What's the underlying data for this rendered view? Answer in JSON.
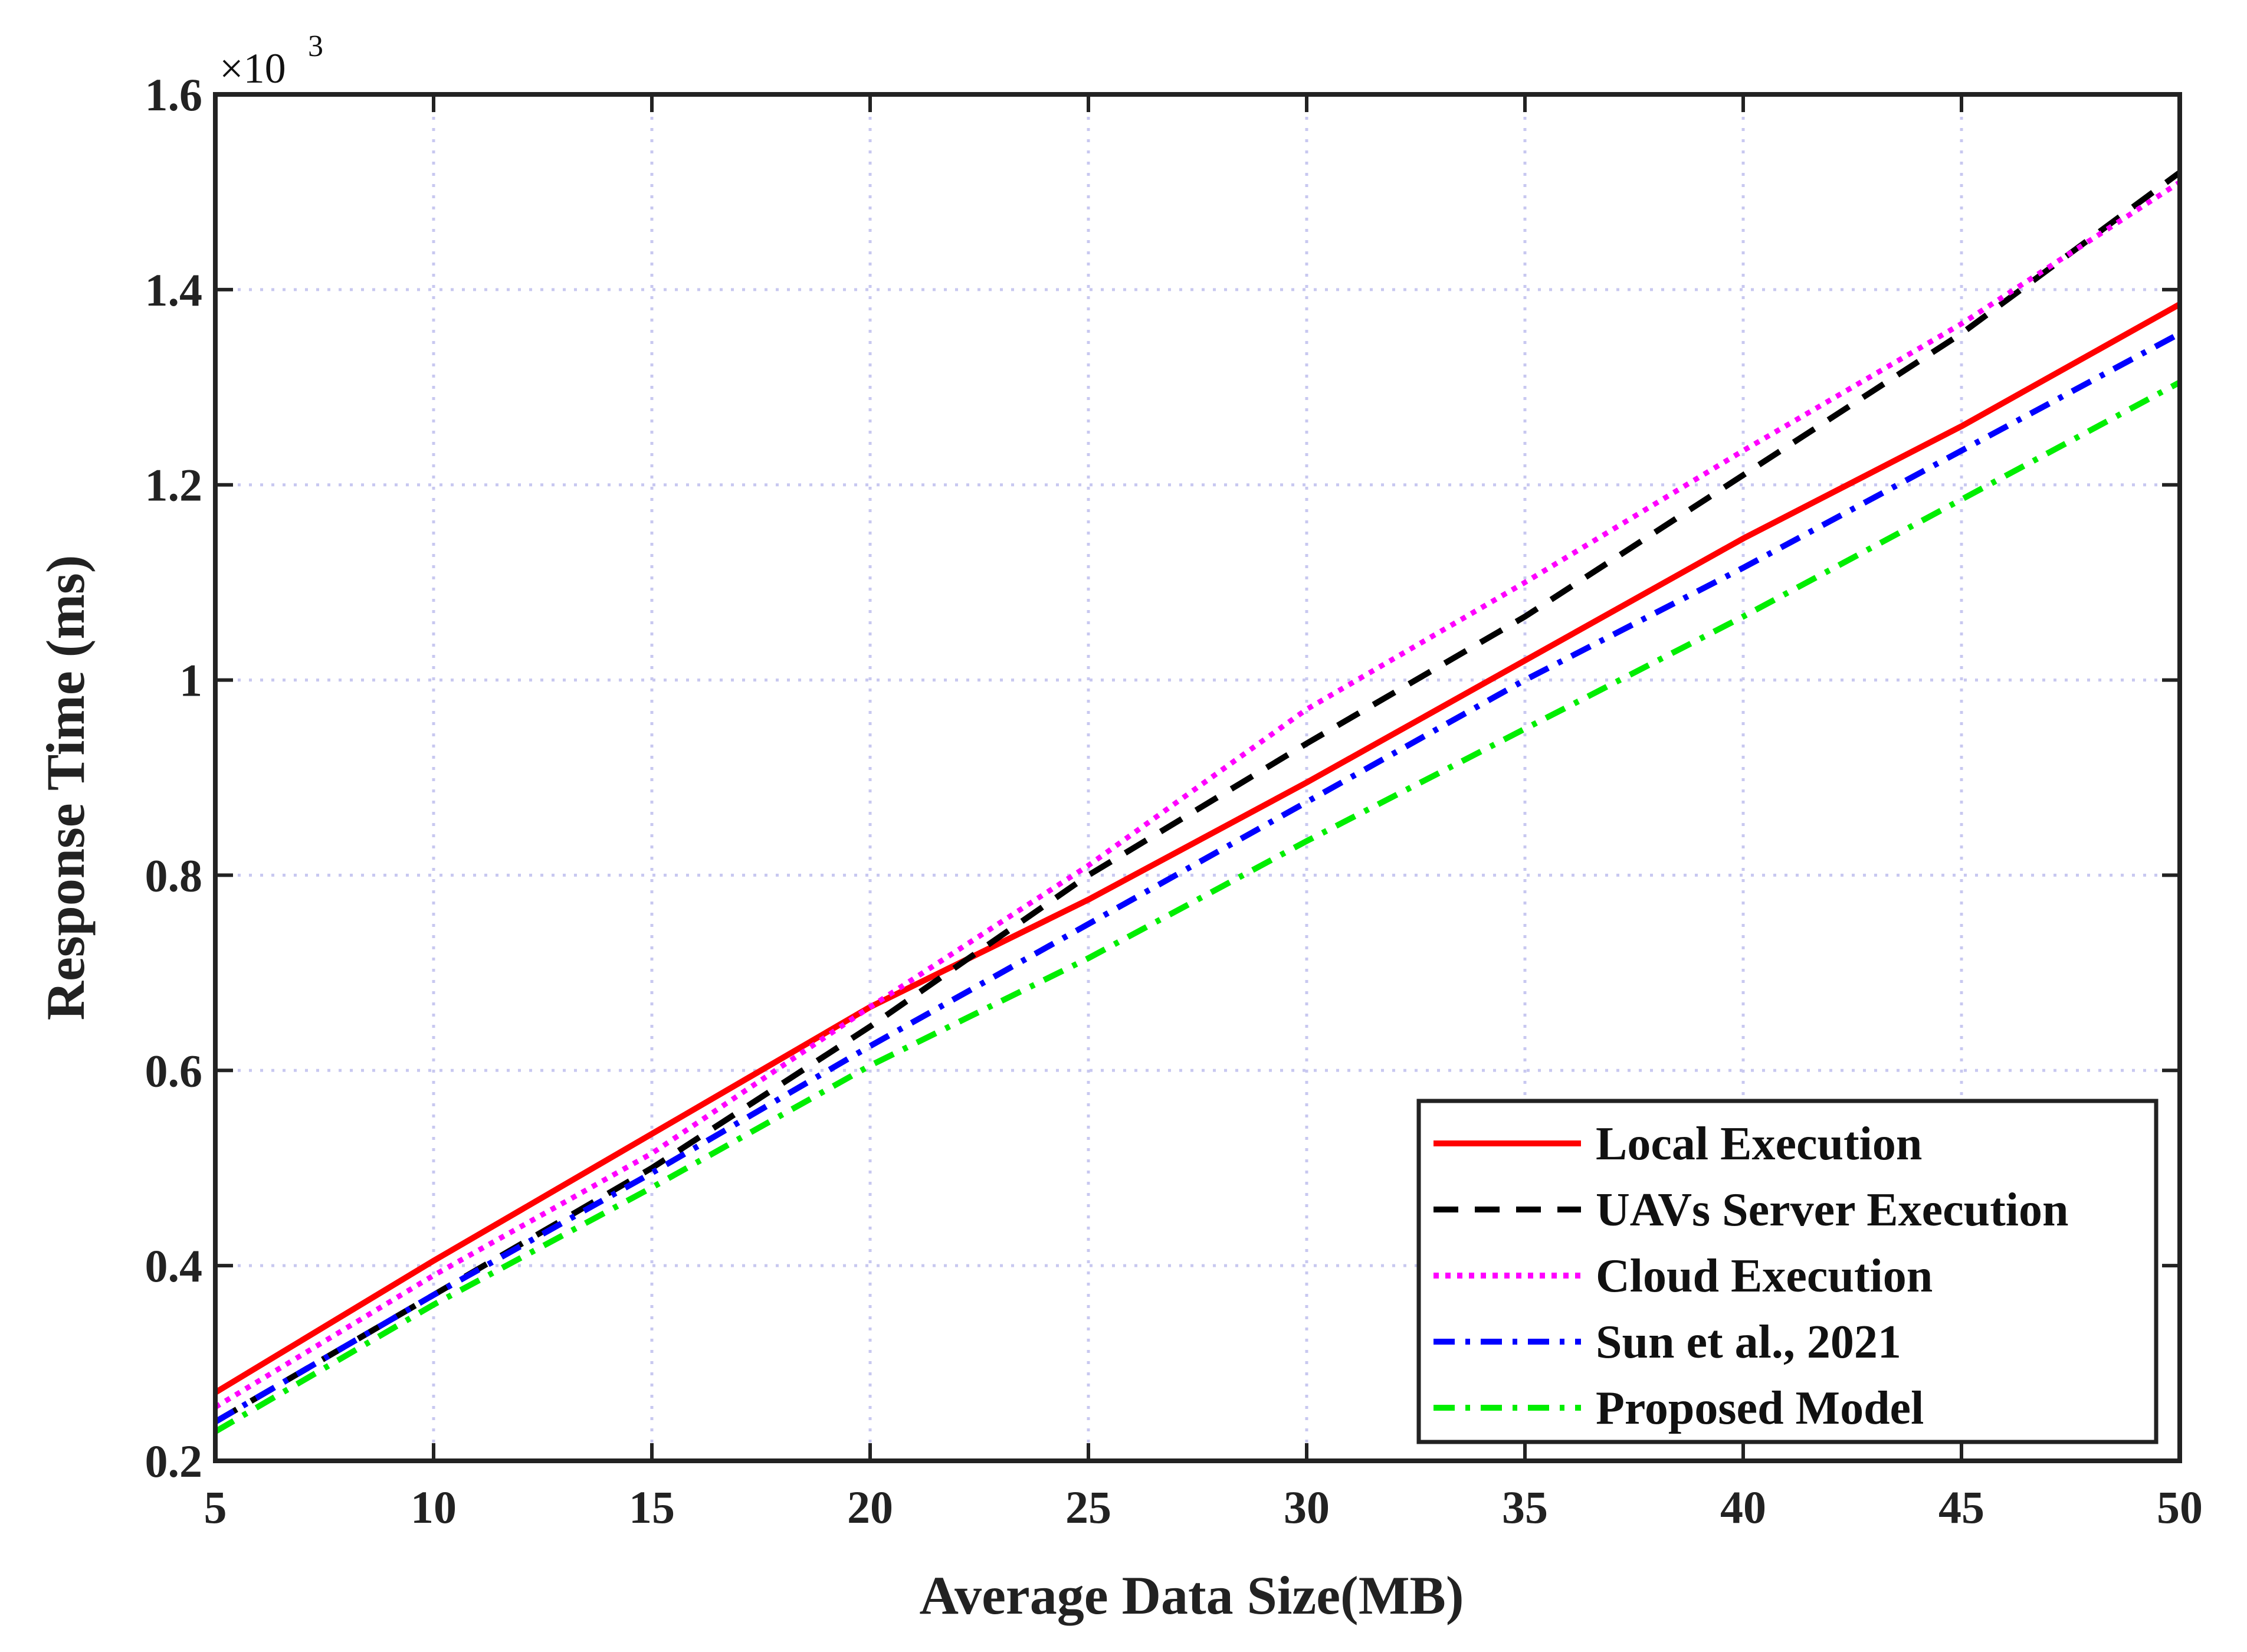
{
  "chart_data": {
    "type": "line",
    "title": "",
    "xlabel": "Average Data Size(MB)",
    "ylabel": "Response Time (ms)",
    "y_multiplier_label": "×10",
    "y_multiplier_exponent": "3",
    "xlim": [
      5,
      50
    ],
    "ylim": [
      0.2,
      1.6
    ],
    "xticks": [
      5,
      10,
      15,
      20,
      25,
      30,
      35,
      40,
      45,
      50
    ],
    "xtick_labels": [
      "5",
      "10",
      "15",
      "20",
      "25",
      "30",
      "35",
      "40",
      "45",
      "50"
    ],
    "yticks": [
      0.2,
      0.4,
      0.6,
      0.8,
      1.0,
      1.2,
      1.4,
      1.6
    ],
    "ytick_labels": [
      "0.2",
      "0.4",
      "0.6",
      "0.8",
      "1",
      "1.2",
      "1.4",
      "1.6"
    ],
    "grid": true,
    "legend_position": "bottom-right",
    "x": [
      5,
      10,
      15,
      20,
      25,
      30,
      35,
      40,
      45,
      50
    ],
    "series": [
      {
        "name": "Local Execution",
        "color": "#ff0000",
        "dash": "solid",
        "values": [
          0.27,
          0.405,
          0.535,
          0.665,
          0.775,
          0.895,
          1.02,
          1.145,
          1.26,
          1.385
        ]
      },
      {
        "name": "UAVs Server Execution",
        "color": "#000000",
        "dash": "dashed",
        "values": [
          0.24,
          0.37,
          0.5,
          0.645,
          0.8,
          0.935,
          1.065,
          1.21,
          1.355,
          1.52
        ]
      },
      {
        "name": "Cloud Execution",
        "color": "#ff00ff",
        "dash": "dotted",
        "values": [
          0.255,
          0.39,
          0.515,
          0.665,
          0.81,
          0.97,
          1.1,
          1.235,
          1.365,
          1.51
        ]
      },
      {
        "name": "Sun et al., 2021",
        "color": "#0000ff",
        "dash": "dashdot",
        "values": [
          0.24,
          0.37,
          0.495,
          0.625,
          0.75,
          0.875,
          1.0,
          1.115,
          1.235,
          1.355
        ]
      },
      {
        "name": "Proposed Model",
        "color": "#00ee00",
        "dash": "dashdot",
        "values": [
          0.23,
          0.36,
          0.48,
          0.605,
          0.715,
          0.835,
          0.95,
          1.065,
          1.185,
          1.305
        ]
      }
    ]
  }
}
